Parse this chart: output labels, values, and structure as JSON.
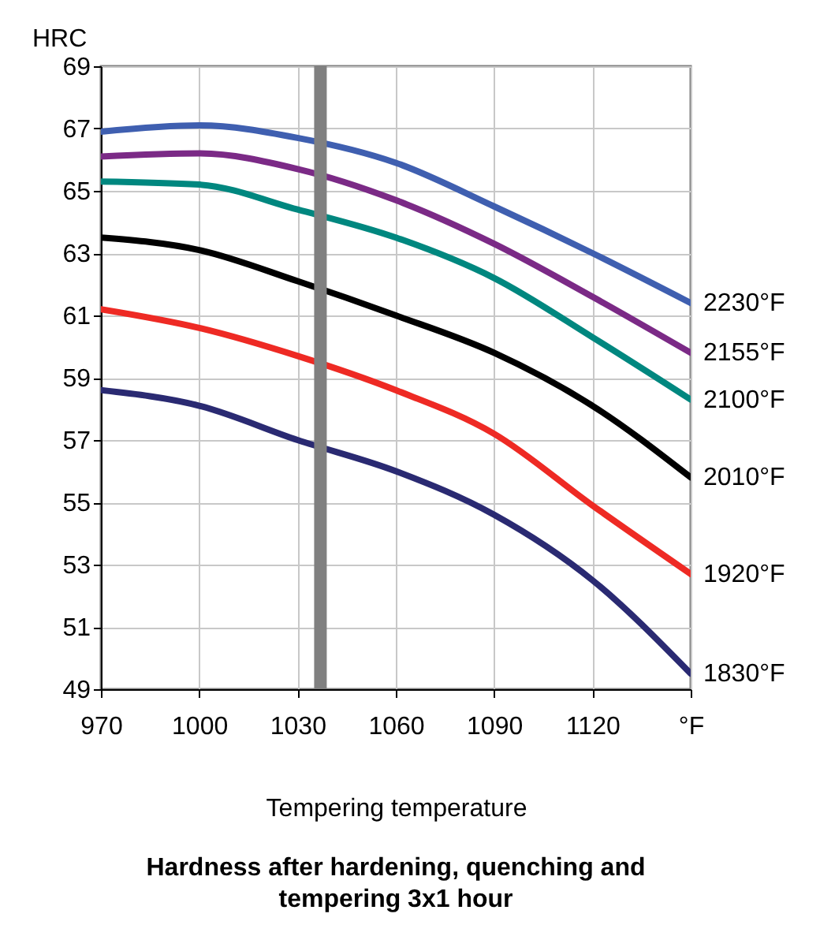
{
  "chart_data": {
    "type": "line",
    "title": "Hardness after hardening, quenching and tempering  3x1 hour",
    "xlabel": "Tempering temperature",
    "ylabel": "HRC",
    "x": [
      970,
      1000,
      1030,
      1060,
      1090,
      1120,
      1150
    ],
    "xlim": [
      970,
      1150
    ],
    "xticks": [
      970,
      1000,
      1030,
      1060,
      1090,
      1120,
      {
        "value": 1150,
        "label": "°F"
      }
    ],
    "ylim": [
      49,
      69
    ],
    "yticks": [
      49,
      51,
      53,
      55,
      57,
      59,
      61,
      63,
      65,
      67,
      69
    ],
    "grid": true,
    "legend": false,
    "line_style": "solid",
    "marker": "none",
    "ref_lines": [
      {
        "axis": "x",
        "value": 1037,
        "color": "#808080"
      }
    ],
    "series": [
      {
        "name": "2230°F",
        "color": "#3f5fb0",
        "values": [
          66.9,
          67.1,
          66.7,
          65.9,
          64.5,
          63.0,
          61.4
        ]
      },
      {
        "name": "2155°F",
        "color": "#7b2a86",
        "values": [
          66.1,
          66.2,
          65.7,
          64.7,
          63.3,
          61.6,
          59.8
        ]
      },
      {
        "name": "2100°F",
        "color": "#00877f",
        "values": [
          65.3,
          65.2,
          64.4,
          63.5,
          62.2,
          60.3,
          58.3
        ]
      },
      {
        "name": "2010°F",
        "color": "#000000",
        "values": [
          63.5,
          63.1,
          62.1,
          61.0,
          59.8,
          58.1,
          55.8
        ]
      },
      {
        "name": "1920°F",
        "color": "#ee2a24",
        "values": [
          61.2,
          60.6,
          59.7,
          58.6,
          57.2,
          54.9,
          52.7
        ]
      },
      {
        "name": "1830°F",
        "color": "#2a2a72",
        "values": [
          58.6,
          58.1,
          57.0,
          56.0,
          54.6,
          52.5,
          49.5
        ]
      }
    ]
  }
}
